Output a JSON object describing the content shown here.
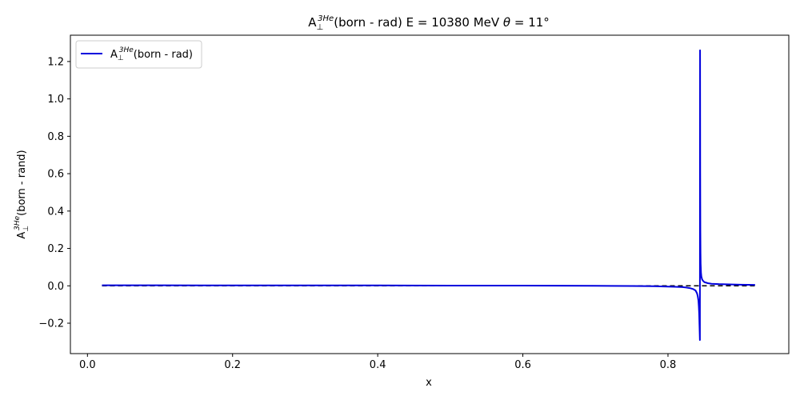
{
  "chart_data": {
    "type": "line",
    "title": {
      "base": "A",
      "sub": "⊥",
      "sup": "3He",
      "rest": "(born - rad) E = 10380 MeV ",
      "theta": "θ",
      "angle": " = 11°"
    },
    "xlabel": "x",
    "ylabel": {
      "base": "A",
      "sub": "⊥",
      "sup": "3He",
      "rest": "(born - rand)"
    },
    "legend": {
      "placement": "upper-left",
      "entries": [
        {
          "base": "A",
          "sub": "⊥",
          "sup": "3He",
          "rest": "(born - rad)"
        }
      ]
    },
    "xlim": [
      -0.0235,
      0.9665
    ],
    "ylim": [
      -0.3626,
      1.3408
    ],
    "xticks": [
      0.0,
      0.2,
      0.4,
      0.6,
      0.8
    ],
    "xtick_labels": [
      "0.0",
      "0.2",
      "0.4",
      "0.6",
      "0.8"
    ],
    "yticks": [
      -0.2,
      0.0,
      0.2,
      0.4,
      0.6,
      0.8,
      1.0,
      1.2
    ],
    "ytick_labels": [
      "−0.2",
      "0.0",
      "0.2",
      "0.4",
      "0.6",
      "0.8",
      "1.0",
      "1.2"
    ],
    "reference_line": {
      "y": 0.0,
      "x_range": [
        0.02,
        0.92
      ],
      "style": "dashed"
    },
    "series": [
      {
        "name": "A⊥3He(born - rad)",
        "x": [
          0.02,
          0.1,
          0.2,
          0.3,
          0.4,
          0.5,
          0.6,
          0.7,
          0.75,
          0.78,
          0.8,
          0.81,
          0.82,
          0.825,
          0.83,
          0.835,
          0.838,
          0.84,
          0.841,
          0.842,
          0.8425,
          0.843,
          0.8435,
          0.844,
          0.8442,
          0.8444,
          0.8446,
          0.8448,
          0.845,
          0.8455,
          0.846,
          0.847,
          0.848,
          0.85,
          0.855,
          0.86,
          0.87,
          0.88,
          0.9,
          0.92
        ],
        "y": [
          0.003,
          0.003,
          0.002,
          0.002,
          0.002,
          0.001,
          0.001,
          0.0,
          -0.001,
          -0.002,
          -0.004,
          -0.005,
          -0.007,
          -0.009,
          -0.012,
          -0.018,
          -0.025,
          -0.04,
          -0.055,
          -0.08,
          -0.11,
          -0.15,
          -0.22,
          -0.29,
          1.26,
          0.6,
          0.3,
          0.18,
          0.12,
          0.07,
          0.05,
          0.035,
          0.028,
          0.02,
          0.014,
          0.011,
          0.009,
          0.008,
          0.006,
          0.005
        ]
      }
    ],
    "colors": {
      "series": "#0000dd",
      "reference": "#000000"
    }
  }
}
